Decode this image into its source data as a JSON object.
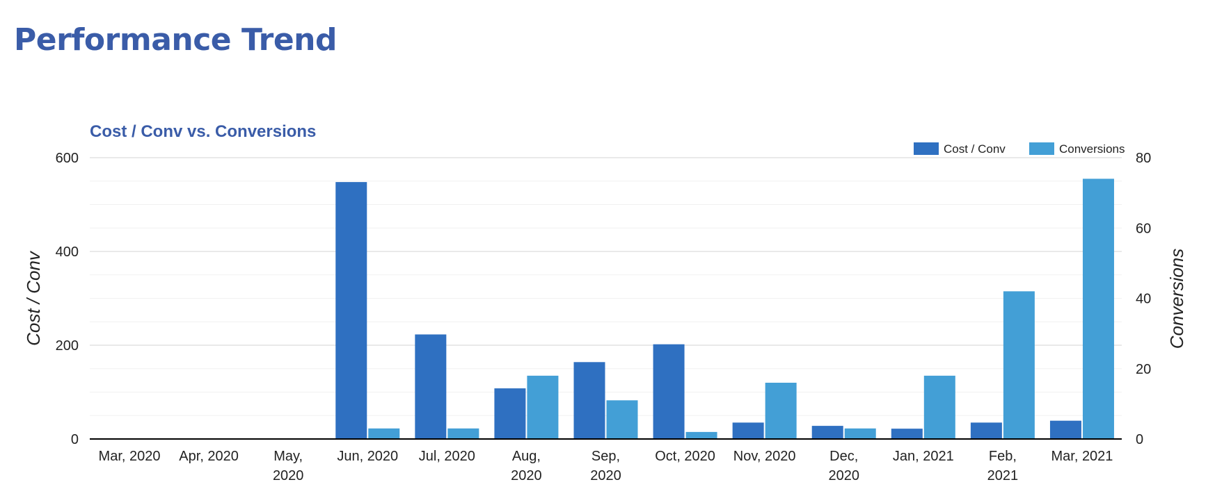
{
  "page": {
    "title": "Performance Trend"
  },
  "colors": {
    "title": "#3a5ca8",
    "cost_per_conv": "#2f70c1",
    "conversions": "#439fd6",
    "gridline": "#e8e8e8",
    "baseline": "#000000"
  },
  "chart_data": {
    "type": "bar",
    "title": "Cost / Conv vs. Conversions",
    "categories": [
      [
        "Mar, 2020"
      ],
      [
        "Apr, 2020"
      ],
      [
        "May,",
        "2020"
      ],
      [
        "Jun, 2020"
      ],
      [
        "Jul, 2020"
      ],
      [
        "Aug,",
        "2020"
      ],
      [
        "Sep,",
        "2020"
      ],
      [
        "Oct, 2020"
      ],
      [
        "Nov, 2020"
      ],
      [
        "Dec,",
        "2020"
      ],
      [
        "Jan, 2021"
      ],
      [
        "Feb,",
        "2021"
      ],
      [
        "Mar, 2021"
      ]
    ],
    "series": [
      {
        "name": "Cost / Conv",
        "axis": "left",
        "color": "#2f70c1",
        "values": [
          0,
          0,
          0,
          548,
          223,
          108,
          164,
          202,
          35,
          28,
          22,
          35,
          39
        ]
      },
      {
        "name": "Conversions",
        "axis": "right",
        "color": "#439fd6",
        "values": [
          0,
          0,
          0,
          3,
          3,
          18,
          11,
          2,
          16,
          3,
          18,
          42,
          74
        ]
      }
    ],
    "ylabel": "Cost / Conv",
    "y2label": "Conversions",
    "ylim": [
      0,
      600
    ],
    "y2lim": [
      0,
      80
    ],
    "yticks": [
      "600",
      "400",
      "200",
      "0"
    ],
    "y2ticks": [
      "80",
      "60",
      "40",
      "20",
      "0"
    ],
    "grid": true,
    "legend_position": "top-right"
  }
}
